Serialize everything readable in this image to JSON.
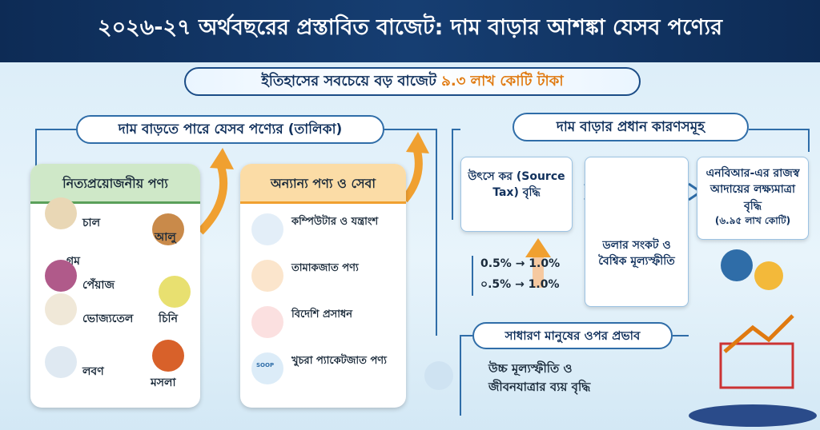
{
  "header": {
    "title": "২০২৬-২৭ অর্থবছরের প্রস্তাবিত বাজেট: দাম বাড়ার আশঙ্কা যেসব পণ্যের",
    "subtitle": "ইতিহাসের সবচেয়ে বড় বাজেট",
    "highlight": "৯.৩ লাখ কোটি টাকা"
  },
  "products": {
    "heading": "দাম বাড়তে পারে যেসব পণ্যের (তালিকা)",
    "essentials": {
      "title": "নিত্যপ্রয়োজনীয় পণ্য",
      "items": [
        "চাল",
        "গম",
        "আলু",
        "পেঁয়াজ",
        "ভোজ্যতেল",
        "চিনি",
        "লবণ",
        "মসলা"
      ]
    },
    "others": {
      "title": "অন্যান্য পণ্য ও সেবা",
      "items": [
        "কম্পিউটার ও যন্ত্রাংশ",
        "তামাকজাত পণ্য",
        "বিদেশি প্রসাধন",
        "খুচরা প্যাকেটজাত পণ্য"
      ],
      "icon_label": "SOOP"
    }
  },
  "reasons": {
    "heading": "দাম বাড়ার প্রধান কারণসমূহ",
    "source_tax": {
      "label": "উৎসে কর (Source Tax) বৃদ্ধি",
      "rates": [
        "0.5% → 1.0%",
        "০.5% → 1.0%"
      ]
    },
    "dollar": "ডলার সংকট ও বৈশ্বিক মূল্যস্ফীতি",
    "nbr": {
      "label": "এনবিআর-এর রাজস্ব আদায়ের লক্ষ্যমাত্রা বৃদ্ধি",
      "amount": "(৬.৯৫ লাখ কোটি)"
    }
  },
  "impact": {
    "heading": "সাধারণ মানুষের ওপর প্রভাব",
    "text": "উচ্চ মূল্যস্ফীতি ও জীবনযাত্রার ব্যয় বৃদ্ধি"
  }
}
